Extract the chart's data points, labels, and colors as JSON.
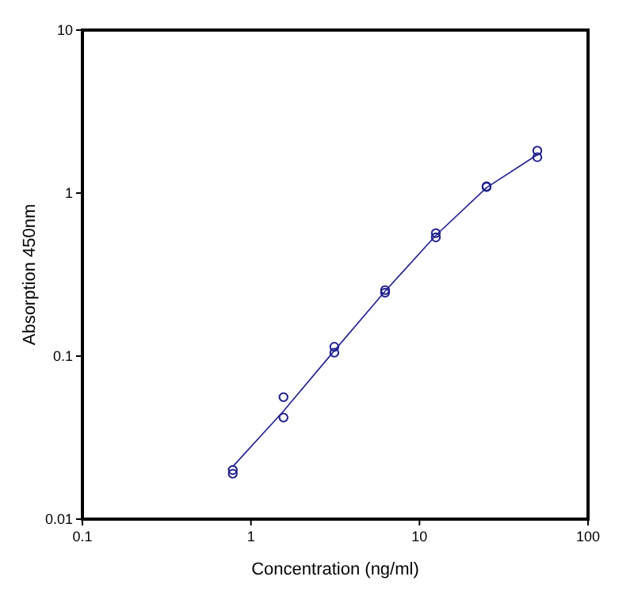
{
  "chart_data": {
    "type": "scatter",
    "xlabel": "Concentration (ng/ml)",
    "ylabel": "Absorption 450nm",
    "log": "xy",
    "grid": false,
    "xlim": [
      0.1,
      100
    ],
    "ylim": [
      0.01,
      10
    ],
    "xticks": [
      0.1,
      1,
      10,
      100
    ],
    "yticks": [
      0.01,
      0.1,
      1,
      10
    ],
    "series": [
      {
        "type": "scatter",
        "color": "#1f1f8f",
        "marker": "circle",
        "x": [
          0.78,
          0.78,
          1.56,
          1.56,
          3.125,
          3.125,
          6.25,
          6.25,
          12.5,
          12.5,
          25,
          25,
          50,
          50
        ],
        "values": [
          0.02,
          0.019,
          0.056,
          0.042,
          0.114,
          0.105,
          0.254,
          0.245,
          0.568,
          0.535,
          1.1,
          1.09,
          1.82,
          1.66
        ]
      },
      {
        "type": "line",
        "color": "#1f1f8f",
        "line_style": "solid",
        "x": [
          0.78,
          1.56,
          3.125,
          6.25,
          12.5,
          25,
          50
        ],
        "values": [
          0.021,
          0.046,
          0.108,
          0.25,
          0.55,
          1.08,
          1.72
        ]
      }
    ]
  }
}
